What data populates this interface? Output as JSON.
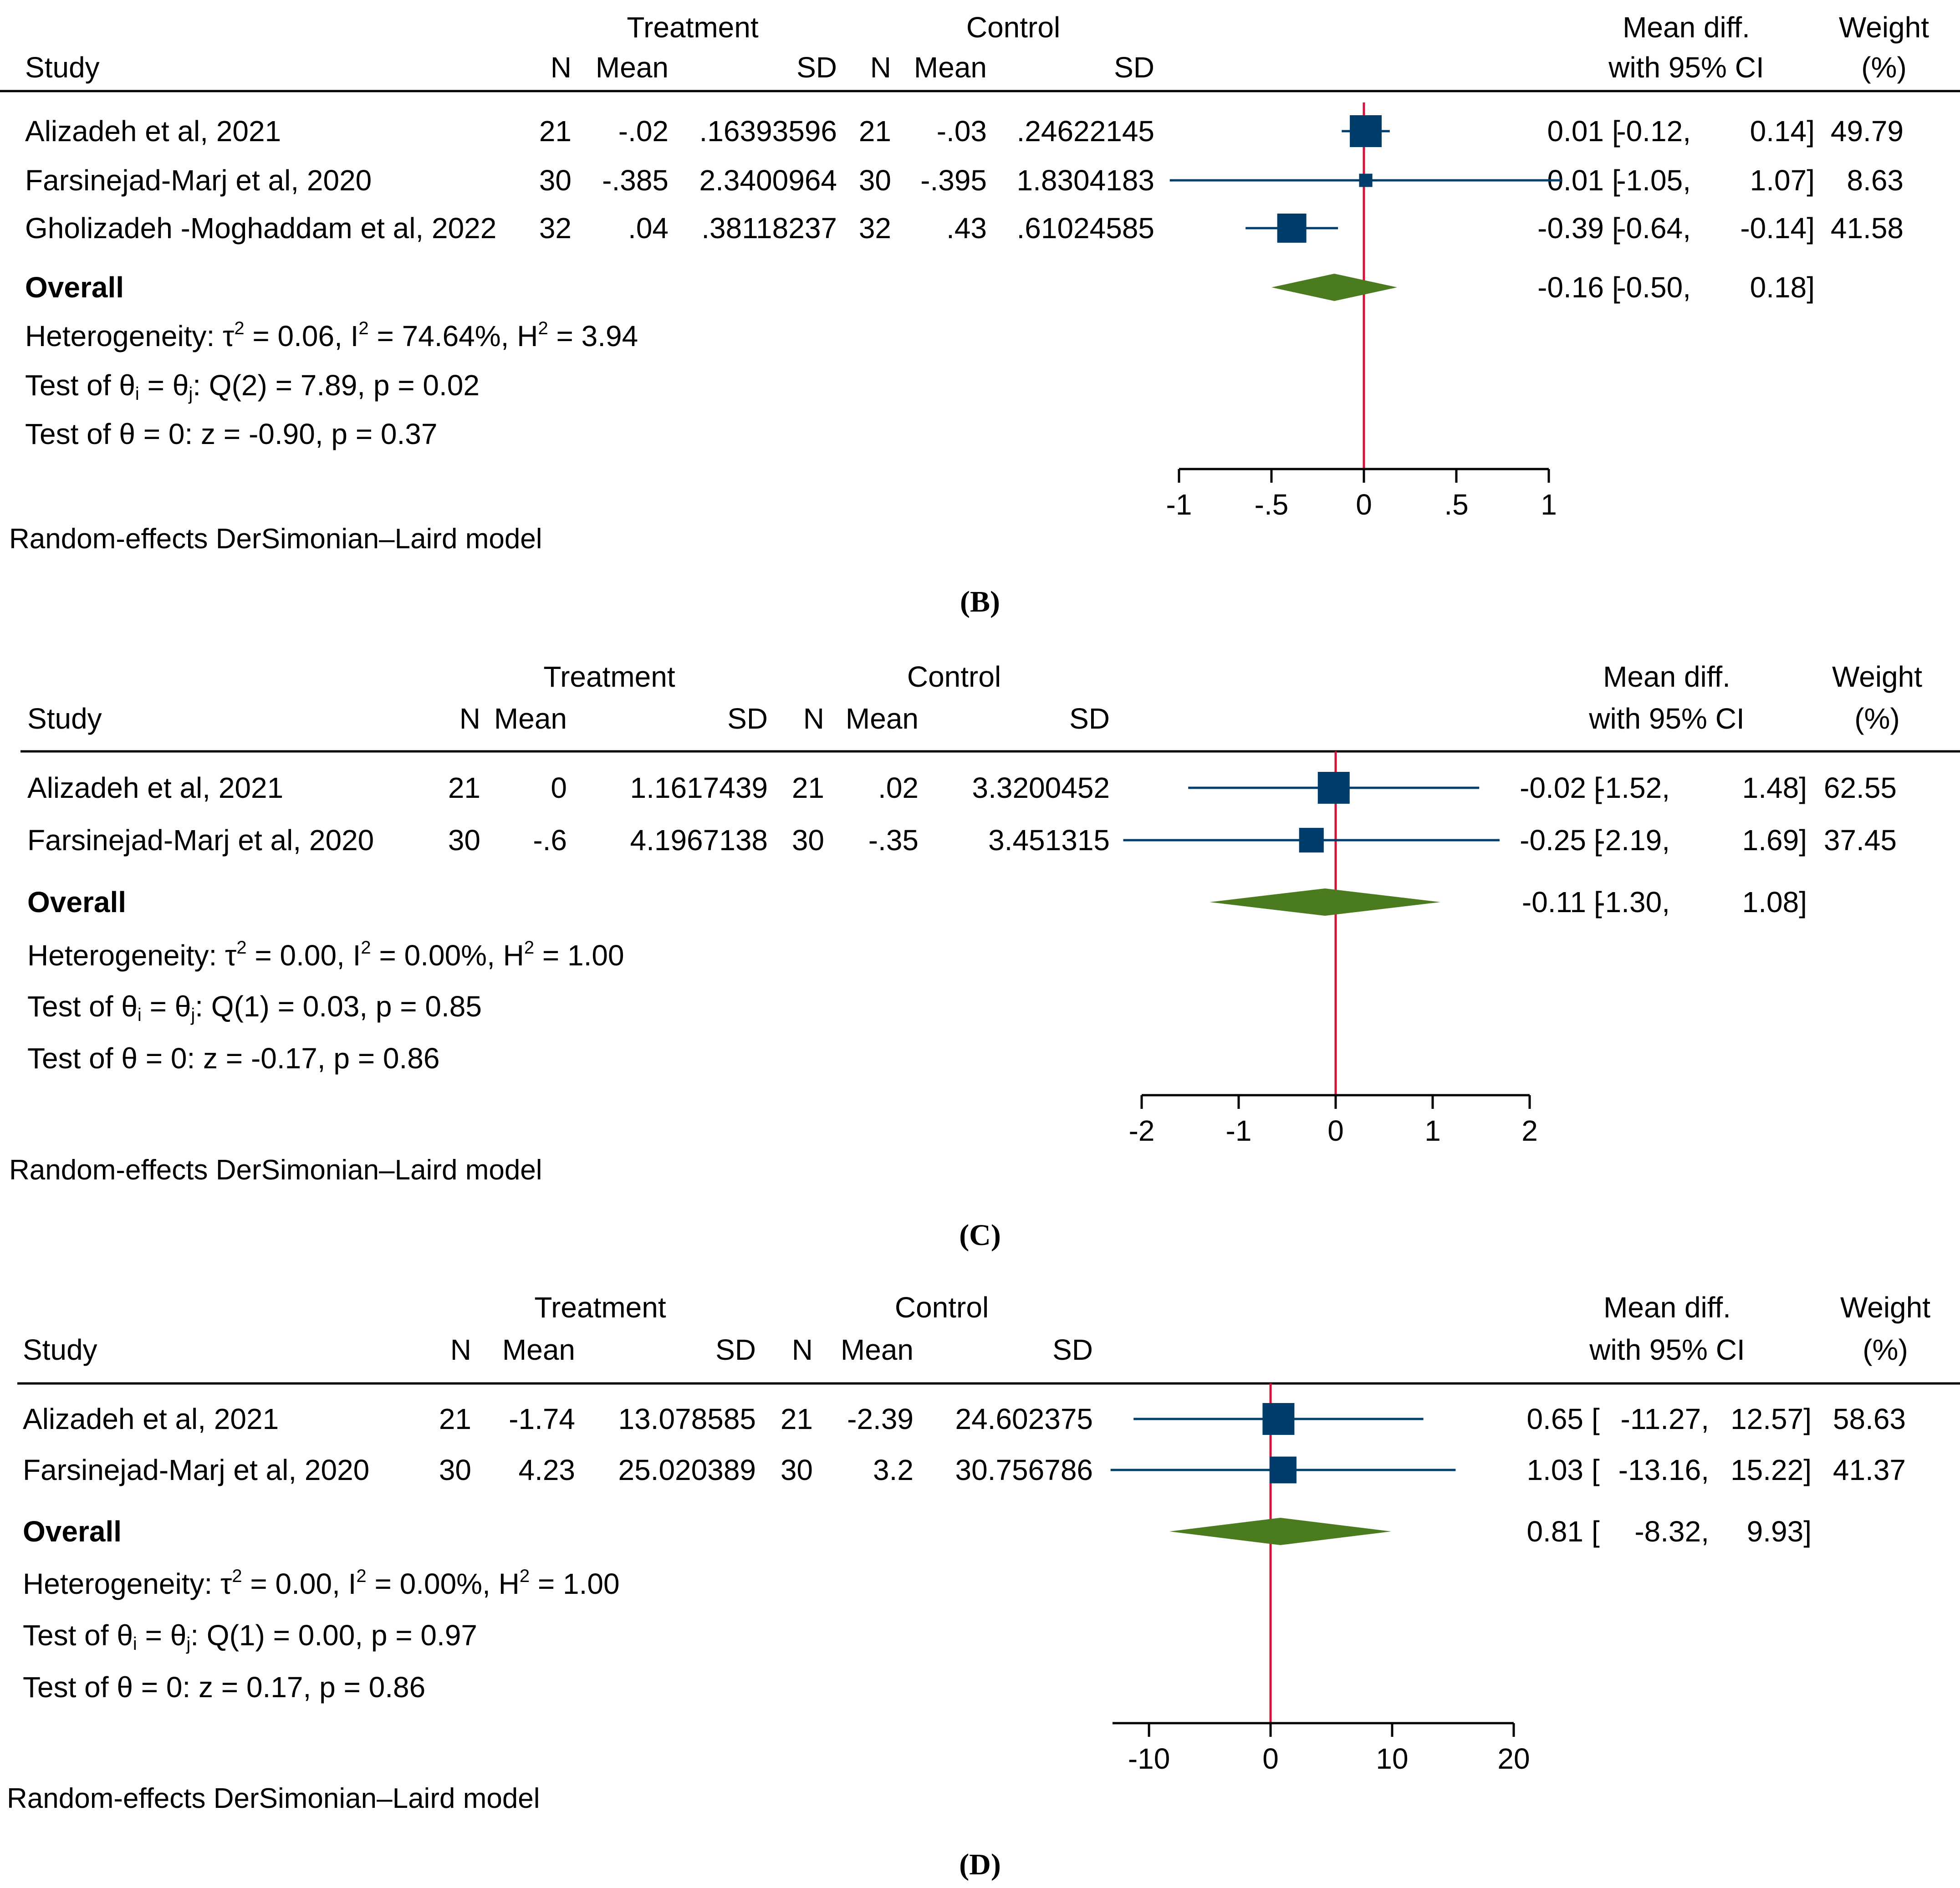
{
  "figure": {
    "colors": {
      "text": "#000000",
      "marker": "#003D6B",
      "ci_line": "#003D6B",
      "diamond": "#4B7B1F",
      "null_line": "#D2143C",
      "rule": "#000000"
    },
    "model_note": "Random-effects DerSimonian–Laird model"
  },
  "chart_data": [
    {
      "type": "forest",
      "panel_label": "(B)",
      "caption_letter": "B",
      "headers": {
        "study": "Study",
        "treatment": "Treatment",
        "control": "Control",
        "n": "N",
        "mean": "Mean",
        "sd": "SD",
        "effect_top": "Mean diff.",
        "effect_bottom": "with 95% CI",
        "weight_top": "Weight",
        "weight_bottom": "(%)"
      },
      "studies": [
        {
          "name": "Alizadeh et al, 2021",
          "t_n": "21",
          "t_mean": "-.02",
          "t_sd": ".16393596",
          "c_n": "21",
          "c_mean": "-.03",
          "c_sd": ".24622145",
          "est": 0.01,
          "lo": -0.12,
          "hi": 0.14,
          "est_text": "0.01",
          "lo_text": "-0.12,",
          "hi_text": "0.14]",
          "weight": 49.79,
          "weight_text": "49.79"
        },
        {
          "name": "Farsinejad-Marj et al, 2020",
          "t_n": "30",
          "t_mean": "-.385",
          "t_sd": "2.3400964",
          "c_n": "30",
          "c_mean": "-.395",
          "c_sd": "1.8304183",
          "est": 0.01,
          "lo": -1.05,
          "hi": 1.07,
          "est_text": "0.01",
          "lo_text": "-1.05,",
          "hi_text": "1.07]",
          "weight": 8.63,
          "weight_text": "8.63"
        },
        {
          "name": "Gholizadeh -Moghaddam et al, 2022",
          "t_n": "32",
          "t_mean": ".04",
          "t_sd": ".38118237",
          "c_n": "32",
          "c_mean": ".43",
          "c_sd": ".61024585",
          "est": -0.39,
          "lo": -0.64,
          "hi": -0.14,
          "est_text": "-0.39",
          "lo_text": "-0.64,",
          "hi_text": "-0.14]",
          "weight": 41.58,
          "weight_text": "41.58"
        }
      ],
      "overall": {
        "label": "Overall",
        "est": -0.16,
        "lo": -0.5,
        "hi": 0.18,
        "est_text": "-0.16",
        "lo_text": "-0.50,",
        "hi_text": "0.18]"
      },
      "heterogeneity": {
        "tau2": "0.06",
        "i2": "74.64%",
        "h2": "3.94"
      },
      "q_test": {
        "df": "2",
        "q": "7.89",
        "p": "0.02"
      },
      "z_test": {
        "z": "-0.90",
        "p": "0.37"
      },
      "axis": {
        "xlim": [
          -1,
          1
        ],
        "ticks": [
          -1,
          -0.5,
          0,
          0.5,
          1
        ],
        "tick_labels": [
          "-1",
          "-.5",
          "0",
          ".5",
          "1"
        ]
      }
    },
    {
      "type": "forest",
      "panel_label": "(C)",
      "caption_letter": "C",
      "headers": {
        "study": "Study",
        "treatment": "Treatment",
        "control": "Control",
        "n": "N",
        "mean": "Mean",
        "sd": "SD",
        "effect_top": "Mean diff.",
        "effect_bottom": "with 95% CI",
        "weight_top": "Weight",
        "weight_bottom": "(%)"
      },
      "studies": [
        {
          "name": "Alizadeh et al, 2021",
          "t_n": "21",
          "t_mean": "0",
          "t_sd": "1.1617439",
          "c_n": "21",
          "c_mean": ".02",
          "c_sd": "3.3200452",
          "est": -0.02,
          "lo": -1.52,
          "hi": 1.48,
          "est_text": "-0.02",
          "lo_text": "-1.52,",
          "hi_text": "1.48]",
          "weight": 62.55,
          "weight_text": "62.55"
        },
        {
          "name": "Farsinejad-Marj et al, 2020",
          "t_n": "30",
          "t_mean": "-.6",
          "t_sd": "4.1967138",
          "c_n": "30",
          "c_mean": "-.35",
          "c_sd": "3.451315",
          "est": -0.25,
          "lo": -2.19,
          "hi": 1.69,
          "est_text": "-0.25",
          "lo_text": "-2.19,",
          "hi_text": "1.69]",
          "weight": 37.45,
          "weight_text": "37.45"
        }
      ],
      "overall": {
        "label": "Overall",
        "est": -0.11,
        "lo": -1.3,
        "hi": 1.08,
        "est_text": "-0.11",
        "lo_text": "-1.30,",
        "hi_text": "1.08]"
      },
      "heterogeneity": {
        "tau2": "0.00",
        "i2": "0.00%",
        "h2": "1.00"
      },
      "q_test": {
        "df": "1",
        "q": "0.03",
        "p": "0.85"
      },
      "z_test": {
        "z": "-0.17",
        "p": "0.86"
      },
      "axis": {
        "xlim": [
          -2,
          2
        ],
        "ticks": [
          -2,
          -1,
          0,
          1,
          2
        ],
        "tick_labels": [
          "-2",
          "-1",
          "0",
          "1",
          "2"
        ]
      }
    },
    {
      "type": "forest",
      "panel_label": "(D)",
      "caption_letter": "D",
      "headers": {
        "study": "Study",
        "treatment": "Treatment",
        "control": "Control",
        "n": "N",
        "mean": "Mean",
        "sd": "SD",
        "effect_top": "Mean diff.",
        "effect_bottom": "with 95% CI",
        "weight_top": "Weight",
        "weight_bottom": "(%)"
      },
      "studies": [
        {
          "name": "Alizadeh et al, 2021",
          "t_n": "21",
          "t_mean": "-1.74",
          "t_sd": "13.078585",
          "c_n": "21",
          "c_mean": "-2.39",
          "c_sd": "24.602375",
          "est": 0.65,
          "lo": -11.27,
          "hi": 12.57,
          "est_text": "0.65",
          "lo_text": "-11.27,",
          "hi_text": "12.57]",
          "weight": 58.63,
          "weight_text": "58.63"
        },
        {
          "name": "Farsinejad-Marj et al, 2020",
          "t_n": "30",
          "t_mean": "4.23",
          "t_sd": "25.020389",
          "c_n": "30",
          "c_mean": "3.2",
          "c_sd": "30.756786",
          "est": 1.03,
          "lo": -13.16,
          "hi": 15.22,
          "est_text": "1.03",
          "lo_text": "-13.16,",
          "hi_text": "15.22]",
          "weight": 41.37,
          "weight_text": "41.37"
        }
      ],
      "overall": {
        "label": "Overall",
        "est": 0.81,
        "lo": -8.32,
        "hi": 9.93,
        "est_text": "0.81",
        "lo_text": "-8.32,",
        "hi_text": "9.93]"
      },
      "heterogeneity": {
        "tau2": "0.00",
        "i2": "0.00%",
        "h2": "1.00"
      },
      "q_test": {
        "df": "1",
        "q": "0.00",
        "p": "0.97"
      },
      "z_test": {
        "z": "0.17",
        "p": "0.86"
      },
      "axis": {
        "xlim": [
          -13,
          20
        ],
        "ticks": [
          -10,
          0,
          10,
          20
        ],
        "tick_labels": [
          "-10",
          "0",
          "10",
          "20"
        ]
      }
    }
  ]
}
